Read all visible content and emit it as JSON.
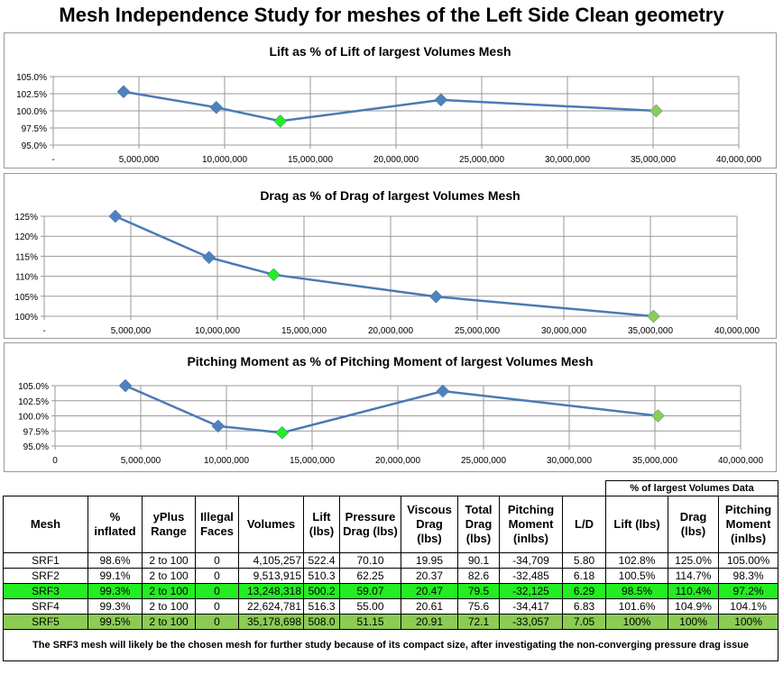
{
  "title": "Mesh Independence Study for meshes of the Left Side Clean geometry",
  "colors": {
    "line": "#4a7ab5",
    "marker": "#4f81bd",
    "highlight": "#22ee22",
    "reference": "#8ccc55",
    "grid": "#999999"
  },
  "chart_data": [
    {
      "type": "line",
      "title": "Lift as % of Lift of largest Volumes Mesh",
      "x": [
        4105257,
        9513915,
        13248318,
        22624781,
        35178698
      ],
      "y": [
        102.8,
        100.5,
        98.5,
        101.6,
        100.0
      ],
      "xlim": [
        0,
        40000000
      ],
      "ylim": [
        95,
        105
      ],
      "xticks": [
        "-",
        "5,000,000",
        "10,000,000",
        "15,000,000",
        "20,000,000",
        "25,000,000",
        "30,000,000",
        "35,000,000",
        "40,000,000"
      ],
      "yticks": [
        "95.0%",
        "97.5%",
        "100.0%",
        "102.5%",
        "105.0%"
      ],
      "grid": true,
      "markers": [
        "blue",
        "blue",
        "green",
        "blue",
        "lightgreen"
      ]
    },
    {
      "type": "line",
      "title": "Drag as % of Drag of largest Volumes Mesh",
      "x": [
        4105257,
        9513915,
        13248318,
        22624781,
        35178698
      ],
      "y": [
        125.0,
        114.7,
        110.4,
        104.9,
        100.0
      ],
      "xlim": [
        0,
        40000000
      ],
      "ylim": [
        100,
        125
      ],
      "xticks": [
        "-",
        "5,000,000",
        "10,000,000",
        "15,000,000",
        "20,000,000",
        "25,000,000",
        "30,000,000",
        "35,000,000",
        "40,000,000"
      ],
      "yticks": [
        "100%",
        "105%",
        "110%",
        "115%",
        "120%",
        "125%"
      ],
      "grid": true,
      "markers": [
        "blue",
        "blue",
        "green",
        "blue",
        "lightgreen"
      ]
    },
    {
      "type": "line",
      "title": "Pitching Moment as % of Pitching Moment of largest Volumes Mesh",
      "x": [
        4105257,
        9513915,
        13248318,
        22624781,
        35178698
      ],
      "y": [
        105.0,
        98.3,
        97.2,
        104.1,
        100.0
      ],
      "xlim": [
        0,
        40000000
      ],
      "ylim": [
        95,
        105
      ],
      "xticks": [
        "0",
        "5,000,000",
        "10,000,000",
        "15,000,000",
        "20,000,000",
        "25,000,000",
        "30,000,000",
        "35,000,000",
        "40,000,000"
      ],
      "yticks": [
        "95.0%",
        "97.5%",
        "100.0%",
        "102.5%",
        "105.0%"
      ],
      "grid": true,
      "markers": [
        "blue",
        "blue",
        "green",
        "blue",
        "lightgreen"
      ]
    }
  ],
  "table": {
    "group_header": "% of largest Volumes Data",
    "headers": [
      "Mesh",
      "% inflated",
      "yPlus Range",
      "Illegal Faces",
      "Volumes",
      "Lift (lbs)",
      "Pressure Drag (lbs)",
      "Viscous Drag (lbs)",
      "Total Drag (lbs)",
      "Pitching Moment (inlbs)",
      "L/D",
      "Lift (lbs)",
      "Drag (lbs)",
      "Pitching Moment (inlbs)"
    ],
    "rows": [
      [
        "SRF1",
        "98.6%",
        "2 to 100",
        "0",
        "4,105,257",
        "522.4",
        "70.10",
        "19.95",
        "90.1",
        "-34,709",
        "5.80",
        "102.8%",
        "125.0%",
        "105.00%"
      ],
      [
        "SRF2",
        "99.1%",
        "2 to 100",
        "0",
        "9,513,915",
        "510.3",
        "62.25",
        "20.37",
        "82.6",
        "-32,485",
        "6.18",
        "100.5%",
        "114.7%",
        "98.3%"
      ],
      [
        "SRF3",
        "99.3%",
        "2 to 100",
        "0",
        "13,248,318",
        "500.2",
        "59.07",
        "20.47",
        "79.5",
        "-32,125",
        "6.29",
        "98.5%",
        "110.4%",
        "97.2%"
      ],
      [
        "SRF4",
        "99.3%",
        "2 to 100",
        "0",
        "22,624,781",
        "516.3",
        "55.00",
        "20.61",
        "75.6",
        "-34,417",
        "6.83",
        "101.6%",
        "104.9%",
        "104.1%"
      ],
      [
        "SRF5",
        "99.5%",
        "2 to 100",
        "0",
        "35,178,698",
        "508.0",
        "51.15",
        "20.91",
        "72.1",
        "-33,057",
        "7.05",
        "100%",
        "100%",
        "100%"
      ]
    ],
    "note": "The SRF3 mesh will likely be the chosen mesh for further study because of its compact size, after investigating the non-converging pressure drag issue"
  }
}
